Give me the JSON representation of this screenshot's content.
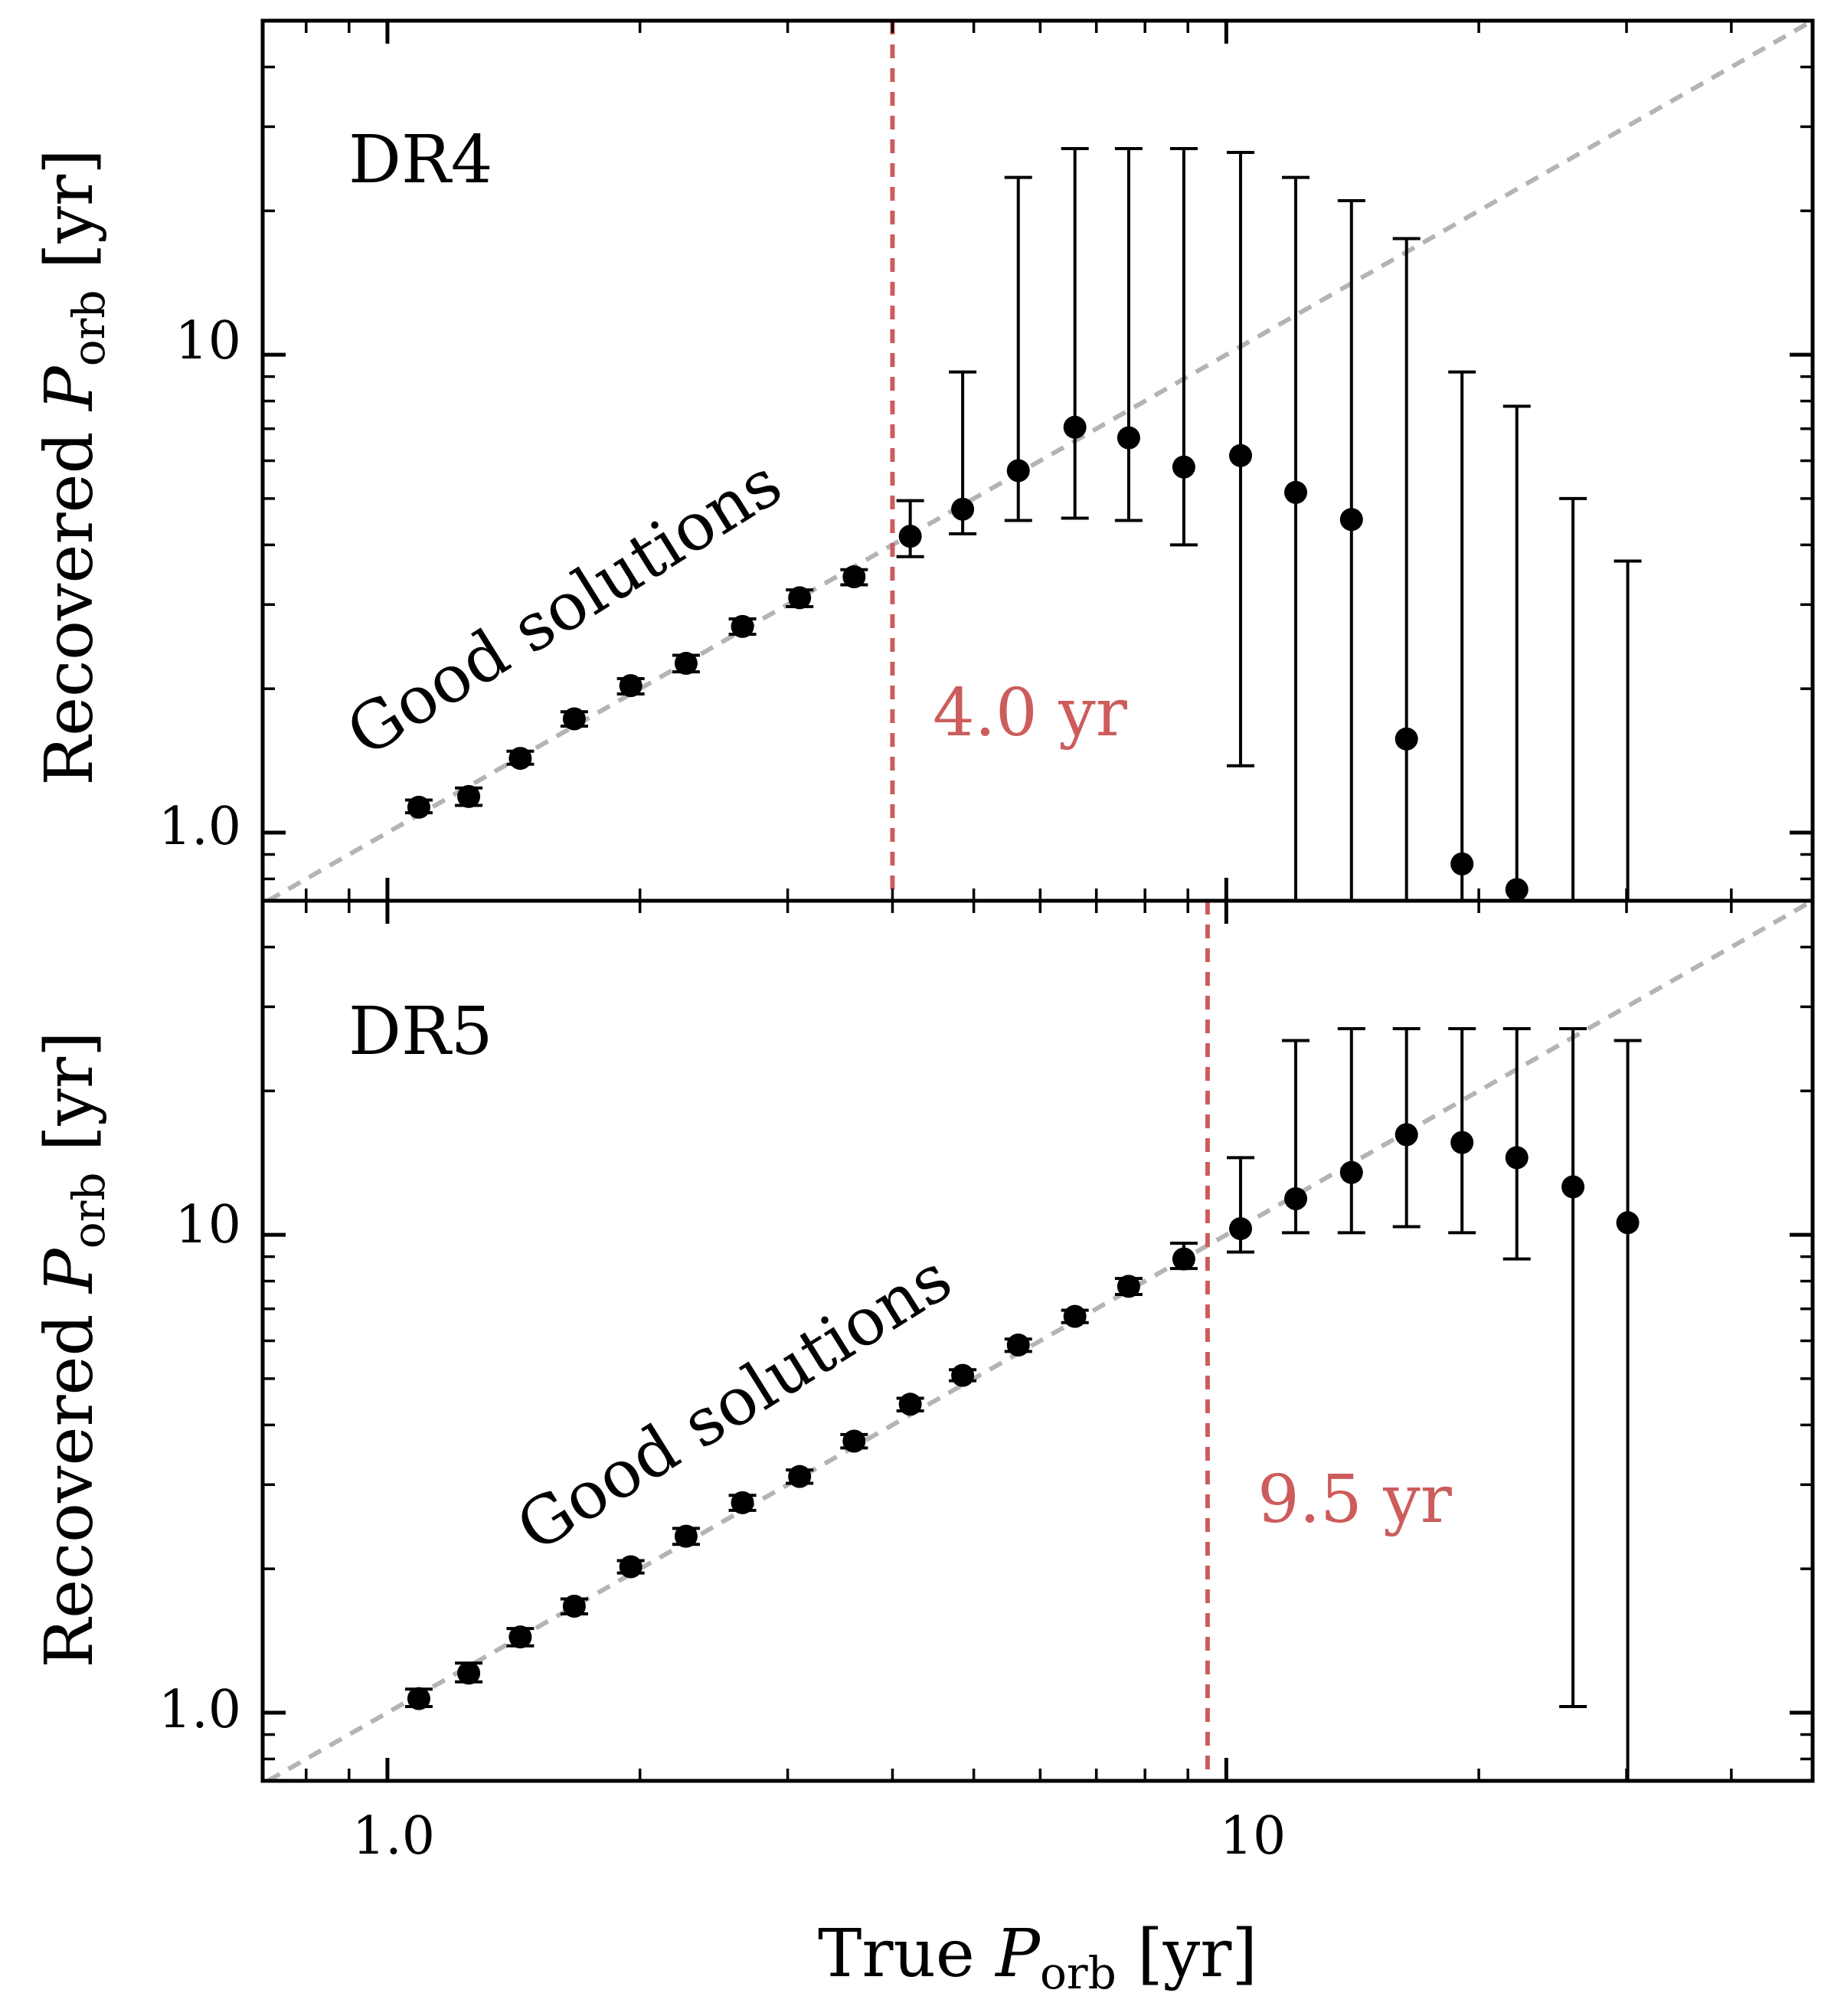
{
  "figure": {
    "xlabel_prefix": "True ",
    "xlabel_symbol": "P",
    "xlabel_sub": "orb",
    "xlabel_unit": " [yr]",
    "ylabel_prefix": "Recovered ",
    "ylabel_symbol": "P",
    "ylabel_sub": "orb",
    "ylabel_unit": " [yr]",
    "x_tick_labels": [
      "1.0",
      "10"
    ],
    "y_tick_labels": [
      "1.0",
      "10"
    ]
  },
  "colors": {
    "points": "#000000",
    "one_to_one": "#b4b4b4",
    "threshold": "#cd5c5c",
    "axes": "#000000"
  },
  "chart_data": [
    {
      "type": "scatter",
      "panel_label": "DR4",
      "annotation": "Good solutions",
      "xscale": "log",
      "yscale": "log",
      "xlim": [
        0.71,
        50
      ],
      "ylim": [
        0.72,
        50
      ],
      "threshold": {
        "x": 4.0,
        "label": "4.0 yr"
      },
      "reference_line": "y = x",
      "x": [
        1.09,
        1.25,
        1.44,
        1.67,
        1.95,
        2.27,
        2.65,
        3.1,
        3.6,
        4.2,
        4.85,
        5.65,
        6.6,
        7.65,
        8.9,
        10.4,
        12.1,
        14.1,
        16.4,
        19.1,
        22.2,
        25.9,
        30.1
      ],
      "y": [
        1.13,
        1.19,
        1.43,
        1.73,
        2.03,
        2.26,
        2.7,
        3.1,
        3.43,
        4.17,
        4.75,
        5.72,
        7.05,
        6.7,
        5.82,
        6.15,
        5.15,
        4.52,
        1.57,
        0.86,
        0.76,
        null,
        null
      ],
      "y_low": [
        1.1,
        1.14,
        1.39,
        1.67,
        1.95,
        2.17,
        2.6,
        2.97,
        3.3,
        3.78,
        4.22,
        4.5,
        4.55,
        4.5,
        4.0,
        1.38,
        0.72,
        0.72,
        0.72,
        0.72,
        0.72,
        0.72,
        0.72
      ],
      "y_high": [
        1.17,
        1.24,
        1.48,
        1.79,
        2.1,
        2.35,
        2.8,
        3.22,
        3.55,
        4.95,
        9.2,
        23.5,
        27.0,
        27.0,
        27.0,
        26.5,
        23.5,
        21.0,
        17.5,
        9.2,
        7.8,
        5.0,
        3.7
      ]
    },
    {
      "type": "scatter",
      "panel_label": "DR5",
      "annotation": "Good solutions",
      "xscale": "log",
      "yscale": "log",
      "xlim": [
        0.71,
        50
      ],
      "ylim": [
        0.72,
        50
      ],
      "threshold": {
        "x": 9.5,
        "label": "9.5 yr"
      },
      "reference_line": "y = x",
      "x": [
        1.09,
        1.25,
        1.44,
        1.67,
        1.95,
        2.27,
        2.65,
        3.1,
        3.6,
        4.2,
        4.85,
        5.65,
        6.6,
        7.65,
        8.9,
        10.4,
        12.1,
        14.1,
        16.4,
        19.1,
        22.2,
        25.9,
        30.1
      ],
      "y": [
        1.07,
        1.21,
        1.44,
        1.67,
        2.02,
        2.34,
        2.75,
        3.12,
        3.7,
        4.42,
        5.08,
        5.88,
        6.75,
        7.8,
        8.9,
        10.3,
        11.9,
        13.5,
        16.2,
        15.6,
        14.5,
        12.6,
        10.6
      ],
      "y_low": [
        1.03,
        1.16,
        1.38,
        1.61,
        1.96,
        2.25,
        2.65,
        3.02,
        3.58,
        4.28,
        4.95,
        5.7,
        6.55,
        7.5,
        8.5,
        9.2,
        10.1,
        10.1,
        10.4,
        10.1,
        8.9,
        1.03,
        0.72
      ],
      "y_high": [
        1.12,
        1.27,
        1.5,
        1.73,
        2.08,
        2.43,
        2.85,
        3.22,
        3.82,
        4.55,
        5.22,
        6.05,
        6.95,
        8.1,
        9.6,
        14.5,
        25.5,
        27.0,
        27.0,
        27.0,
        27.0,
        27.0,
        25.5
      ]
    }
  ]
}
